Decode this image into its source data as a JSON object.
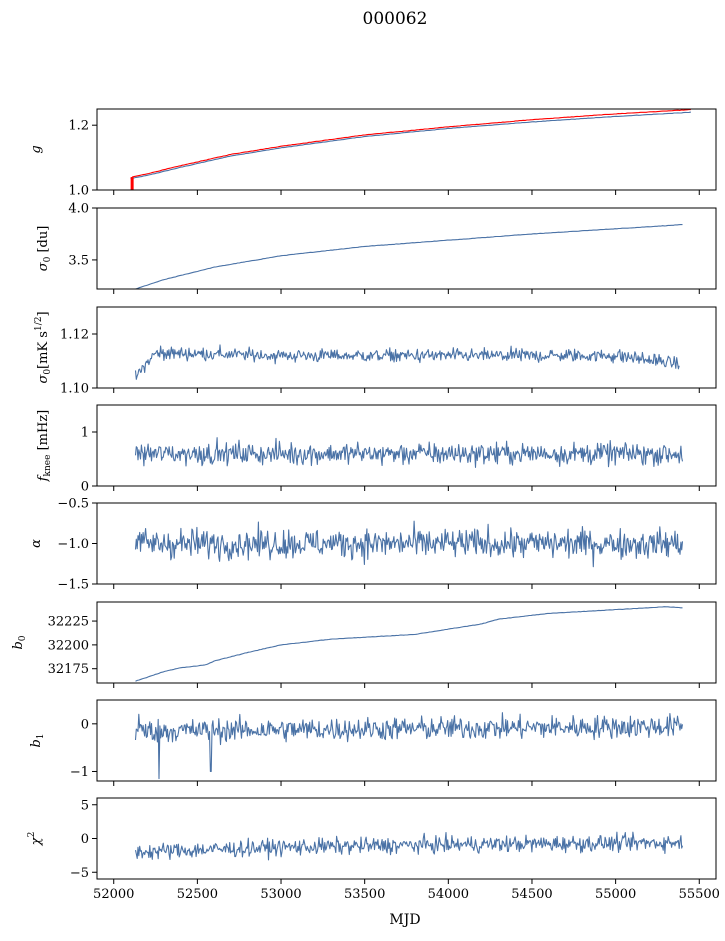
{
  "chart_data": {
    "type": "line",
    "title": "000062",
    "xlabel": "MJD",
    "xlim": [
      51900,
      55600
    ],
    "xticks": [
      52000,
      52500,
      53000,
      53500,
      54000,
      54500,
      55000,
      55500
    ],
    "xtick_labels": [
      "52000",
      "52500",
      "53000",
      "53500",
      "54000",
      "54500",
      "55000",
      "55500"
    ],
    "shared_x": true,
    "colors": {
      "primary": "#4a72a6",
      "fit": "#ff0000"
    },
    "panels": [
      {
        "ylabel_html": "<tspan font-style='italic'>g</tspan>",
        "ylim": [
          1.0,
          1.25
        ],
        "yticks": [
          1.0,
          1.2
        ],
        "ytick_labels": [
          "1.0",
          "1.2"
        ],
        "series": [
          {
            "color": "#4a72a6",
            "kind": "smooth",
            "x": [
              52100,
              52200,
              52400,
              52700,
              53000,
              53500,
              54000,
              54500,
              55000,
              55450
            ],
            "y": [
              1.035,
              1.045,
              1.07,
              1.105,
              1.13,
              1.165,
              1.19,
              1.21,
              1.227,
              1.24
            ]
          },
          {
            "color": "#ff0000",
            "kind": "smooth",
            "x": [
              52110,
              52200,
              52400,
              52700,
              53000,
              53500,
              54000,
              54500,
              55000,
              55450
            ],
            "y": [
              1.04,
              1.05,
              1.075,
              1.11,
              1.135,
              1.17,
              1.195,
              1.217,
              1.235,
              1.248
            ]
          }
        ]
      },
      {
        "ylabel_html": "<tspan font-style='italic'>σ</tspan><tspan font-size='9' dy='3'>0</tspan><tspan dy='-3'> [du]</tspan>",
        "ylim": [
          3.22,
          4.0
        ],
        "yticks": [
          3.5,
          4.0
        ],
        "ytick_labels": [
          "3.5",
          "4.0"
        ],
        "series": [
          {
            "color": "#4a72a6",
            "kind": "smooth",
            "x": [
              52130,
              52300,
              52600,
              53000,
              53500,
              54000,
              54500,
              55000,
              55400
            ],
            "y": [
              3.22,
              3.31,
              3.43,
              3.54,
              3.63,
              3.69,
              3.75,
              3.8,
              3.84
            ]
          }
        ]
      },
      {
        "ylabel_html": "<tspan font-style='italic'>σ</tspan><tspan font-size='9' dy='3'>0</tspan><tspan dy='-3'>[mK s</tspan><tspan font-size='9' dy='-6'>1/2</tspan><tspan dy='6'>]</tspan>",
        "ylim": [
          1.1,
          1.13
        ],
        "yticks": [
          1.1,
          1.12
        ],
        "ytick_labels": [
          "1.10",
          "1.12"
        ],
        "series": [
          {
            "color": "#4a72a6",
            "kind": "noise",
            "x": [
              52130,
              52250,
              53000,
              54000,
              55000,
              55380
            ],
            "y": [
              1.104,
              1.113,
              1.112,
              1.112,
              1.112,
              1.109
            ],
            "noise": 0.0012,
            "n": 650
          }
        ]
      },
      {
        "ylabel_html": "<tspan font-style='italic'>f</tspan><tspan font-size='9' dy='3'>knee</tspan><tspan dy='-3'> [mHz]</tspan>",
        "ylim": [
          0,
          1.5
        ],
        "yticks": [
          0,
          1
        ],
        "ytick_labels": [
          "0",
          "1"
        ],
        "series": [
          {
            "color": "#4a72a6",
            "kind": "noise",
            "x": [
              52130,
              55400
            ],
            "y": [
              0.6,
              0.6
            ],
            "noise": 0.1,
            "n": 650
          }
        ]
      },
      {
        "ylabel_html": "<tspan font-style='italic'>α</tspan>",
        "ylim": [
          -1.5,
          -0.5
        ],
        "yticks": [
          -1.5,
          -1.0,
          -0.5
        ],
        "ytick_labels": [
          "−1.5",
          "−1.0",
          "−0.5"
        ],
        "series": [
          {
            "color": "#4a72a6",
            "kind": "noise",
            "x": [
              52130,
              55400
            ],
            "y": [
              -1.0,
              -1.0
            ],
            "noise": 0.09,
            "n": 650
          }
        ]
      },
      {
        "ylabel_html": "<tspan font-style='italic'>b</tspan><tspan font-size='9' dy='3'>0</tspan>",
        "ylim": [
          32160,
          32245
        ],
        "yticks": [
          32175,
          32200,
          32225
        ],
        "ytick_labels": [
          "32175",
          "32200",
          "32225"
        ],
        "series": [
          {
            "color": "#4a72a6",
            "kind": "smooth",
            "x": [
              52130,
              52200,
              52300,
              52400,
              52550,
              52600,
              52800,
              53000,
              53300,
              53800,
              54200,
              54300,
              54600,
              55000,
              55300,
              55400
            ],
            "y": [
              32162,
              32166,
              32172,
              32176,
              32179,
              32183,
              32192,
              32200,
              32206,
              32211,
              32222,
              32227,
              32233,
              32237,
              32240,
              32239
            ]
          }
        ]
      },
      {
        "ylabel_html": "<tspan font-style='italic'>b</tspan><tspan font-size='9' dy='3'>1</tspan>",
        "ylim": [
          -1.2,
          0.5
        ],
        "yticks": [
          -1,
          0
        ],
        "ytick_labels": [
          "−1",
          "0"
        ],
        "series": [
          {
            "color": "#4a72a6",
            "kind": "noise",
            "x": [
              52130,
              55400
            ],
            "y": [
              -0.15,
              -0.05
            ],
            "noise": 0.12,
            "n": 650,
            "spikes": [
              [
                52270,
                -1.15
              ],
              [
                52580,
                -1.0
              ],
              [
                52150,
                0.2
              ]
            ]
          }
        ]
      },
      {
        "ylabel_html": "<tspan font-style='italic'>χ</tspan><tspan font-size='9' dy='-6'>2</tspan>",
        "ylim": [
          -6,
          6
        ],
        "yticks": [
          -5,
          0,
          5
        ],
        "ytick_labels": [
          "−5",
          "0",
          "5"
        ],
        "series": [
          {
            "color": "#4a72a6",
            "kind": "noise",
            "x": [
              52130,
              53000,
              54000,
              55400
            ],
            "y": [
              -2.0,
              -1.3,
              -0.9,
              -0.6
            ],
            "noise": 0.6,
            "n": 650
          }
        ]
      }
    ]
  }
}
